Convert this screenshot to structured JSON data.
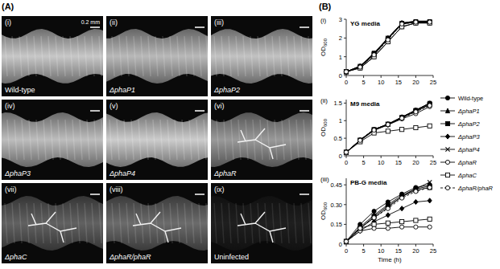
{
  "panel_a": {
    "label": "(A)",
    "scale_bar": "0.2 mm",
    "images": [
      {
        "roman": "(i)",
        "label": "Wild-type"
      },
      {
        "roman": "(ii)",
        "label": "ΔphaP1"
      },
      {
        "roman": "(iii)",
        "label": "ΔphaP2"
      },
      {
        "roman": "(iv)",
        "label": "ΔphaP3"
      },
      {
        "roman": "(v)",
        "label": "ΔphaP4"
      },
      {
        "roman": "(vi)",
        "label": "ΔphaR"
      },
      {
        "roman": "(vii)",
        "label": "ΔphaC"
      },
      {
        "roman": "(viii)",
        "label": "ΔphaR/phaR"
      },
      {
        "roman": "(ix)",
        "label": "Uninfected"
      }
    ]
  },
  "panel_b": {
    "label": "(B)"
  },
  "chart_data": [
    {
      "type": "line",
      "subtitle": "(i)",
      "title": "YG media",
      "y_label": "OD600",
      "legend": "right",
      "x": [
        0,
        4,
        8,
        12,
        16,
        20,
        24
      ],
      "xlim": [
        0,
        25
      ],
      "xticks": [
        0,
        5,
        10,
        15,
        20,
        25
      ],
      "ylim": [
        0,
        3
      ],
      "yticks": [
        0,
        1,
        2,
        3
      ],
      "series": [
        {
          "name": "Wild-type",
          "color": "#000000",
          "marker": "circle",
          "line_style": "solid",
          "values": [
            0.2,
            0.5,
            1.2,
            2.0,
            2.8,
            2.9,
            2.9
          ]
        },
        {
          "name": "ΔphaP1",
          "color": "#000000",
          "marker": "triangle",
          "line_style": "solid",
          "values": [
            0.2,
            0.5,
            1.15,
            2.0,
            2.8,
            2.85,
            2.9
          ]
        },
        {
          "name": "ΔphaP2",
          "color": "#000000",
          "marker": "square",
          "line_style": "solid",
          "values": [
            0.2,
            0.45,
            1.15,
            1.95,
            2.75,
            2.85,
            2.85
          ]
        },
        {
          "name": "ΔphaP3",
          "color": "#000000",
          "marker": "diamond",
          "line_style": "solid",
          "values": [
            0.2,
            0.45,
            1.1,
            1.95,
            2.75,
            2.85,
            2.85
          ]
        },
        {
          "name": "ΔphaP4",
          "color": "#000000",
          "marker": "x",
          "line_style": "solid",
          "values": [
            0.2,
            0.5,
            1.2,
            2.0,
            2.8,
            2.9,
            2.9
          ]
        },
        {
          "name": "ΔphaR",
          "color": "#000000",
          "marker": "circle-open",
          "line_style": "solid",
          "values": [
            0.2,
            0.4,
            1.0,
            1.8,
            2.6,
            2.8,
            2.8
          ]
        },
        {
          "name": "ΔphaC",
          "color": "#000000",
          "marker": "square-open",
          "line_style": "solid",
          "values": [
            0.2,
            0.4,
            1.0,
            1.8,
            2.6,
            2.8,
            2.8
          ]
        },
        {
          "name": "ΔphaR/phaR",
          "color": "#000000",
          "marker": "circle-open",
          "line_style": "dashed",
          "values": [
            0.2,
            0.45,
            1.1,
            1.9,
            2.75,
            2.85,
            2.85
          ]
        }
      ]
    },
    {
      "type": "line",
      "subtitle": "(ii)",
      "title": "M9 media",
      "y_label": "OD600",
      "x": [
        0,
        4,
        8,
        12,
        16,
        20,
        24
      ],
      "xlim": [
        0,
        25
      ],
      "xticks": [
        0,
        5,
        10,
        15,
        20,
        25
      ],
      "ylim": [
        0,
        1.6
      ],
      "yticks": [
        0,
        0.5,
        1,
        1.5
      ],
      "series": [
        {
          "name": "Wild-type",
          "color": "#000000",
          "marker": "circle",
          "line_style": "solid",
          "values": [
            0.1,
            0.45,
            0.75,
            0.9,
            1.1,
            1.3,
            1.5
          ]
        },
        {
          "name": "ΔphaP1",
          "color": "#000000",
          "marker": "triangle",
          "line_style": "solid",
          "values": [
            0.1,
            0.45,
            0.75,
            0.9,
            1.1,
            1.3,
            1.48
          ]
        },
        {
          "name": "ΔphaP2",
          "color": "#000000",
          "marker": "square",
          "line_style": "solid",
          "values": [
            0.1,
            0.44,
            0.74,
            0.9,
            1.08,
            1.28,
            1.46
          ]
        },
        {
          "name": "ΔphaP3",
          "color": "#000000",
          "marker": "diamond",
          "line_style": "solid",
          "values": [
            0.1,
            0.44,
            0.74,
            0.88,
            1.08,
            1.27,
            1.45
          ]
        },
        {
          "name": "ΔphaP4",
          "color": "#000000",
          "marker": "x",
          "line_style": "solid",
          "values": [
            0.1,
            0.45,
            0.75,
            0.9,
            1.1,
            1.3,
            1.5
          ]
        },
        {
          "name": "ΔphaR",
          "color": "#000000",
          "marker": "circle-open",
          "line_style": "solid",
          "values": [
            0.1,
            0.43,
            0.72,
            0.88,
            1.05,
            1.2,
            1.4
          ]
        },
        {
          "name": "ΔphaC",
          "color": "#000000",
          "marker": "square-open",
          "line_style": "solid",
          "values": [
            0.1,
            0.4,
            0.65,
            0.7,
            0.75,
            0.8,
            0.85
          ]
        },
        {
          "name": "ΔphaR/phaR",
          "color": "#000000",
          "marker": "circle-open",
          "line_style": "dashed",
          "values": [
            0.1,
            0.44,
            0.73,
            0.89,
            1.07,
            1.25,
            1.43
          ]
        }
      ]
    },
    {
      "type": "line",
      "subtitle": "(iii)",
      "title": "PB-G media",
      "y_label": "OD600",
      "x_label": "Time (h)",
      "x": [
        0,
        4,
        8,
        12,
        16,
        20,
        24
      ],
      "xlim": [
        0,
        25
      ],
      "xticks": [
        0,
        5,
        10,
        15,
        20,
        25
      ],
      "ylim": [
        0,
        0.5
      ],
      "yticks": [
        0,
        0.15,
        {
          "value": 0.3,
          "label": "0.30"
        },
        0.45
      ],
      "series": [
        {
          "name": "Wild-type",
          "color": "#000000",
          "marker": "circle",
          "line_style": "solid",
          "values": [
            0.02,
            0.15,
            0.25,
            0.32,
            0.38,
            0.43,
            0.45
          ]
        },
        {
          "name": "ΔphaP1",
          "color": "#000000",
          "marker": "triangle",
          "line_style": "solid",
          "values": [
            0.02,
            0.13,
            0.22,
            0.3,
            0.37,
            0.42,
            0.44
          ]
        },
        {
          "name": "ΔphaP2",
          "color": "#000000",
          "marker": "square",
          "line_style": "solid",
          "values": [
            0.02,
            0.12,
            0.21,
            0.29,
            0.36,
            0.41,
            0.43
          ]
        },
        {
          "name": "ΔphaP3",
          "color": "#000000",
          "marker": "diamond",
          "line_style": "solid",
          "values": [
            0.02,
            0.1,
            0.17,
            0.22,
            0.27,
            0.32,
            0.33
          ]
        },
        {
          "name": "ΔphaP4",
          "color": "#000000",
          "marker": "x",
          "line_style": "solid",
          "values": [
            0.02,
            0.12,
            0.2,
            0.28,
            0.36,
            0.42,
            0.47
          ]
        },
        {
          "name": "ΔphaR",
          "color": "#000000",
          "marker": "circle-open",
          "line_style": "solid",
          "values": [
            0.02,
            0.1,
            0.12,
            0.12,
            0.13,
            0.13,
            0.13
          ]
        },
        {
          "name": "ΔphaC",
          "color": "#000000",
          "marker": "square-open",
          "line_style": "solid",
          "values": [
            0.02,
            0.12,
            0.15,
            0.16,
            0.17,
            0.18,
            0.19
          ]
        },
        {
          "name": "ΔphaR/phaR",
          "color": "#000000",
          "marker": "circle-open",
          "line_style": "dashed",
          "values": [
            0.02,
            0.12,
            0.2,
            0.27,
            0.35,
            0.4,
            0.43
          ]
        }
      ]
    }
  ]
}
